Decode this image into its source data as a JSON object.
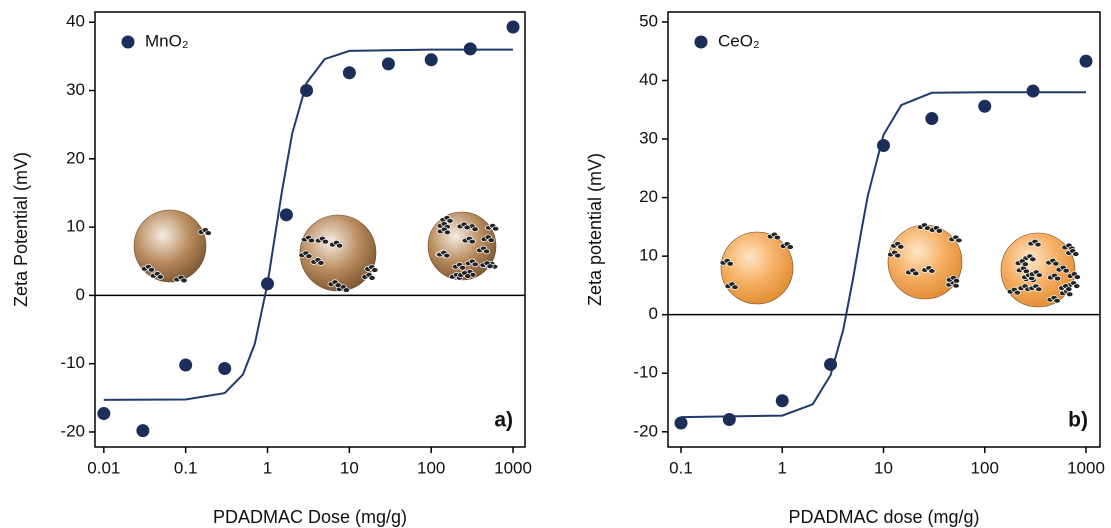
{
  "chart_data": [
    {
      "type": "scatter",
      "log_x": true,
      "xlabel": "PDADMAC Dose (mg/g)",
      "ylabel": "Zeta Potential (mV)",
      "panel_label": "a)",
      "xlim": [
        0.0078,
        1400
      ],
      "ylim": [
        -22.2,
        41.5
      ],
      "xticks": [
        0.01,
        0.1,
        1,
        10,
        100,
        1000
      ],
      "yticks": [
        -20,
        -10,
        0,
        10,
        20,
        30,
        40
      ],
      "hline": 0,
      "series": [
        {
          "name": "MnO₂",
          "color": "#1b2e5a",
          "x": [
            0.01,
            0.03,
            0.1,
            0.3,
            1,
            1.7,
            3,
            10,
            30,
            100,
            300,
            1000
          ],
          "values": [
            -17.3,
            -19.8,
            -10.2,
            -10.7,
            1.7,
            11.8,
            30,
            32.6,
            33.9,
            34.5,
            36.1,
            39.3
          ]
        }
      ],
      "fit": {
        "color": "#1f3b6e",
        "x": [
          0.01,
          0.1,
          0.3,
          0.5,
          0.7,
          1,
          1.5,
          2,
          3,
          5,
          10,
          100,
          1000
        ],
        "values": [
          -15.3,
          -15.25,
          -14.3,
          -11.6,
          -7.1,
          1.7,
          15.2,
          23.7,
          31.1,
          34.6,
          35.8,
          36,
          36
        ]
      }
    },
    {
      "type": "scatter",
      "log_x": true,
      "xlabel": "PDADMAC dose (mg/g)",
      "ylabel": "Zeta potential (mV)",
      "panel_label": "b)",
      "xlim": [
        0.0744,
        1375
      ],
      "ylim": [
        -22.6,
        51.7
      ],
      "xticks": [
        0.1,
        1,
        10,
        100,
        1000
      ],
      "yticks": [
        -20,
        -10,
        0,
        10,
        20,
        30,
        40,
        50
      ],
      "hline": 0,
      "series": [
        {
          "name": "CeO₂",
          "color": "#1b2e5a",
          "x": [
            0.1,
            0.3,
            1,
            3,
            10,
            30,
            100,
            300,
            1000
          ],
          "values": [
            -18.5,
            -17.9,
            -14.7,
            -8.5,
            28.9,
            33.5,
            35.6,
            38.2,
            43.3
          ]
        }
      ],
      "fit": {
        "color": "#1f3b6e",
        "x": [
          0.1,
          1,
          2,
          3,
          4,
          5,
          6,
          7,
          10,
          15,
          30,
          100,
          1000
        ],
        "values": [
          -17.5,
          -17.24,
          -15.3,
          -10.3,
          -2.6,
          6.1,
          14.0,
          20.3,
          30.7,
          35.8,
          37.9,
          38,
          38
        ]
      }
    }
  ]
}
